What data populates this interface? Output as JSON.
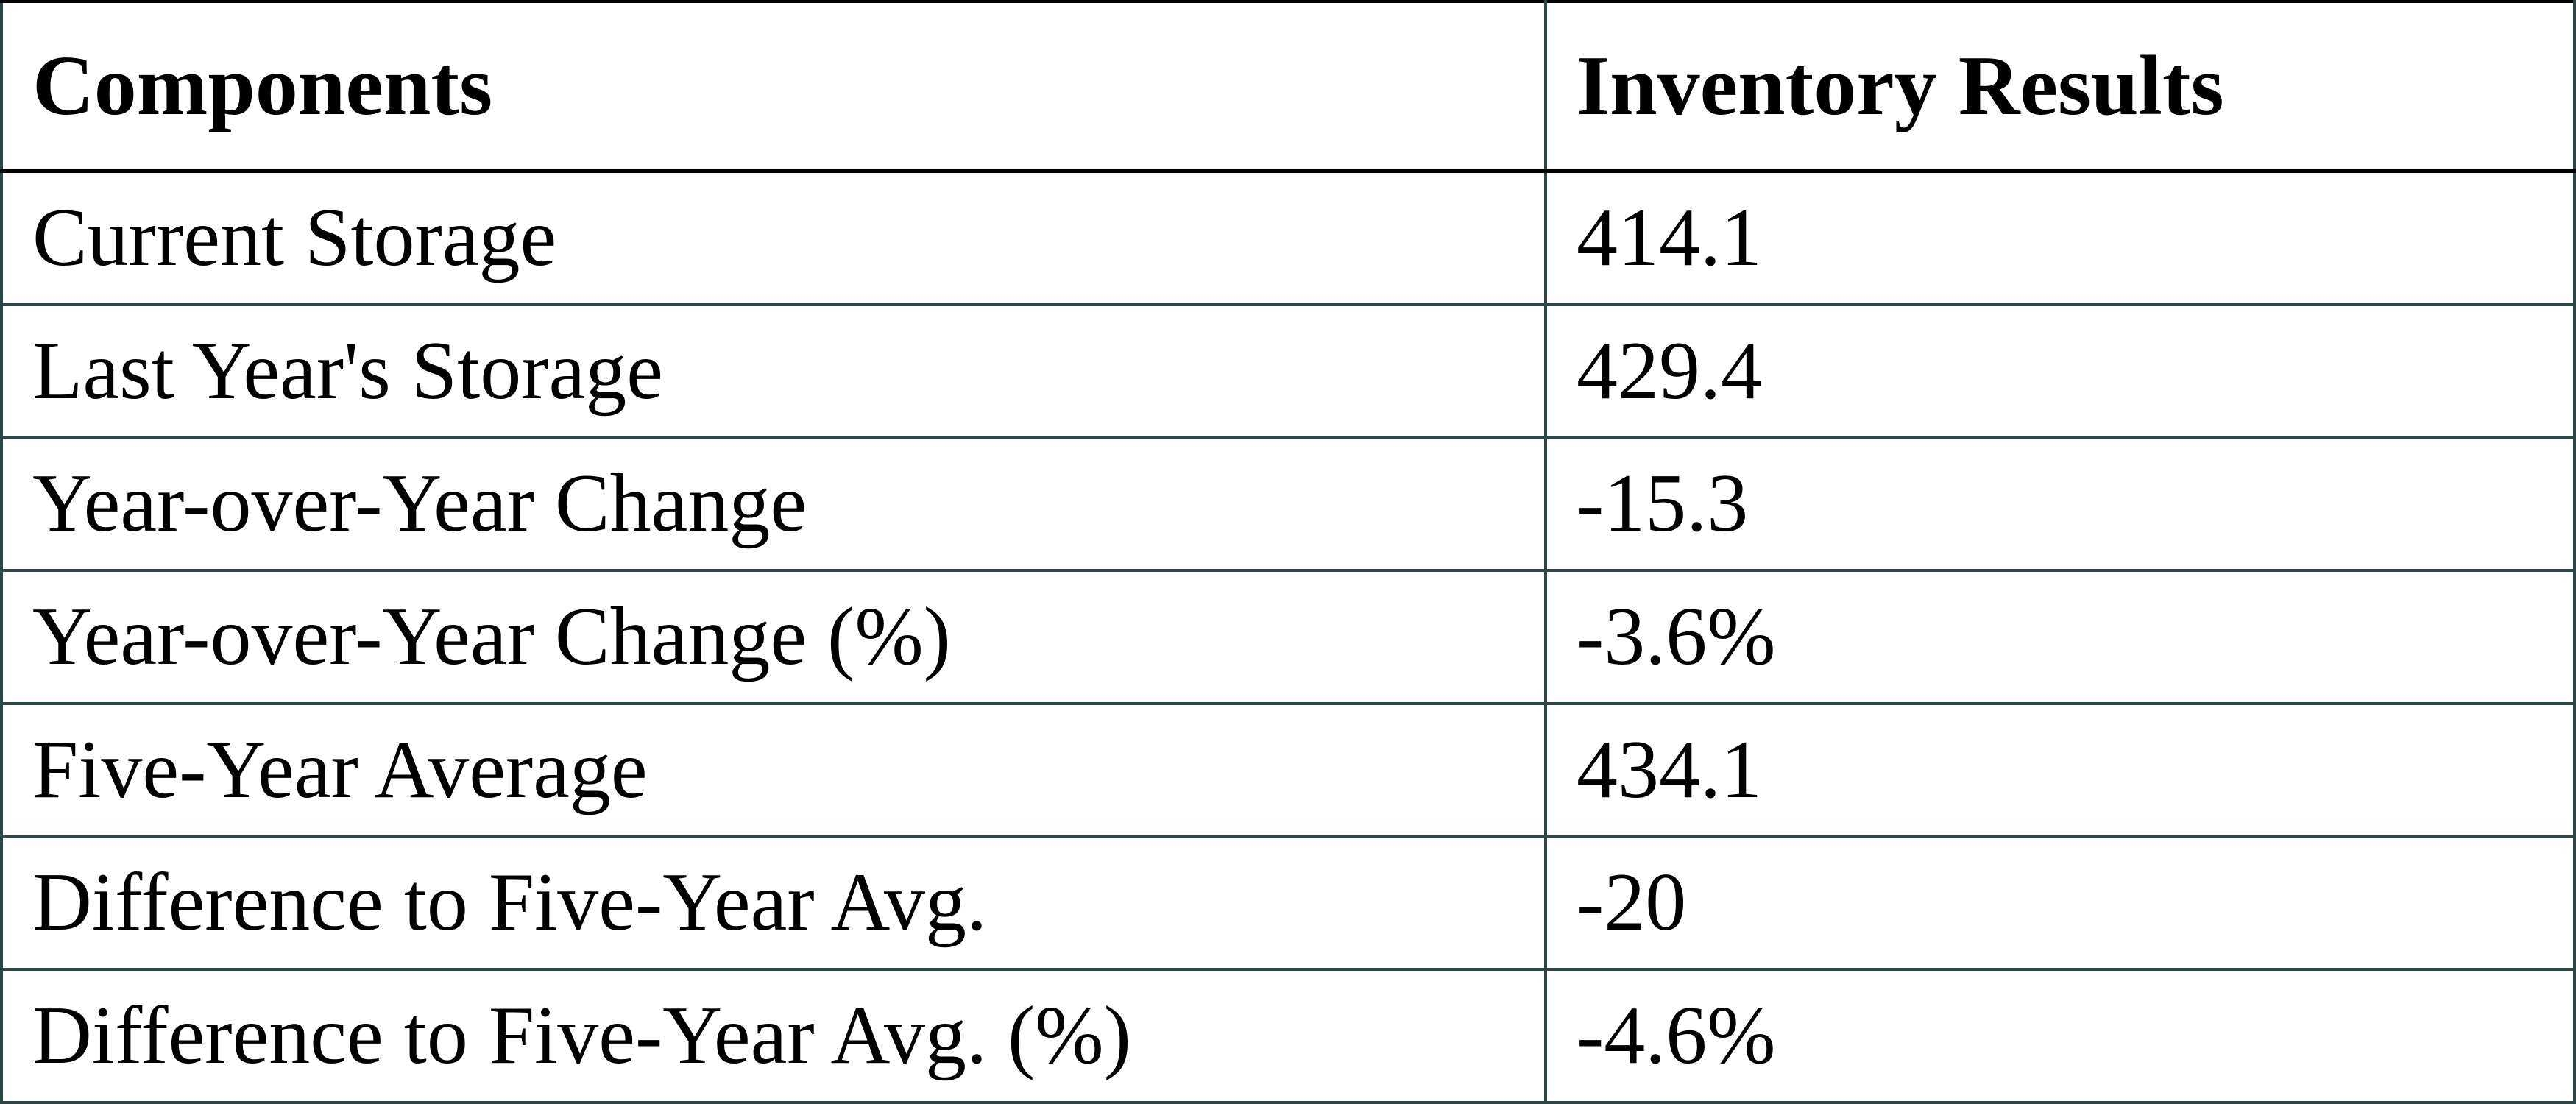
{
  "table": {
    "header": [
      "Components",
      "Inventory Results"
    ],
    "rows": [
      [
        "Current Storage",
        "414.1"
      ],
      [
        "Last Year's Storage",
        "429.4"
      ],
      [
        "Year-over-Year Change",
        "-15.3"
      ],
      [
        "Year-over-Year Change (%)",
        "-3.6%"
      ],
      [
        "Five-Year Average",
        "434.1"
      ],
      [
        "Difference to Five-Year Avg.",
        "-20"
      ],
      [
        "Difference to Five-Year Avg. (%)",
        "-4.6%"
      ]
    ]
  }
}
